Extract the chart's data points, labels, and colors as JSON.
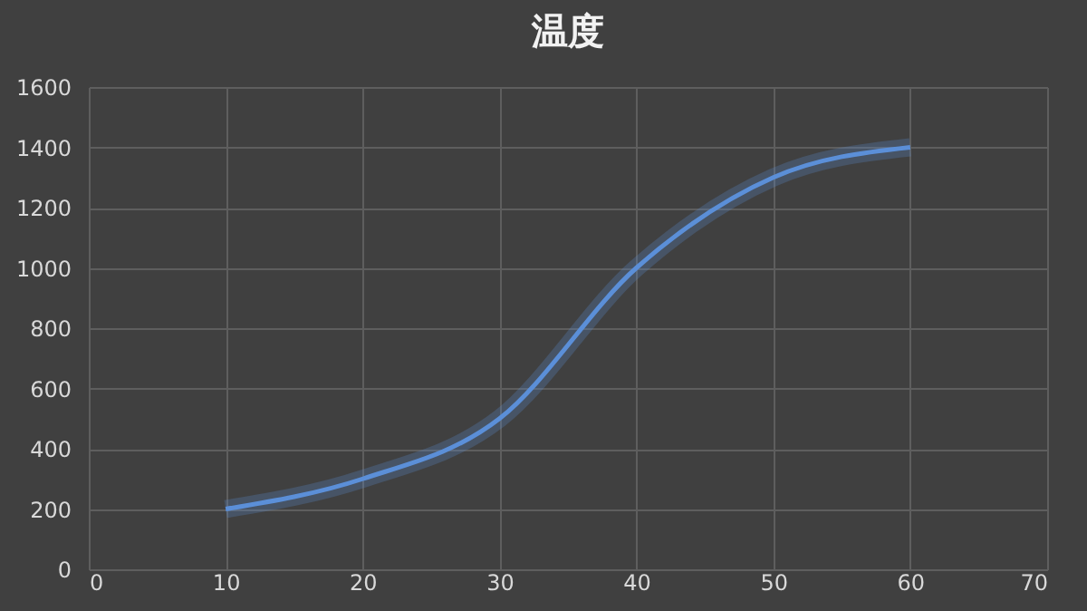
{
  "chart_data": {
    "type": "line",
    "title": "温度",
    "x": [
      10,
      20,
      30,
      40,
      50,
      60
    ],
    "series": [
      {
        "color": "#5b8fd9",
        "values": [
          200,
          300,
          500,
          1000,
          1300,
          1400
        ]
      }
    ],
    "xlim": [
      0,
      70
    ],
    "xticks": [
      0,
      10,
      20,
      30,
      40,
      50,
      60,
      70
    ],
    "ylim": [
      0,
      1600
    ],
    "yticks": [
      0,
      200,
      400,
      600,
      800,
      1000,
      1200,
      1400,
      1600
    ],
    "grid": true,
    "marker": "none",
    "line_style": "solid",
    "legend": false
  }
}
